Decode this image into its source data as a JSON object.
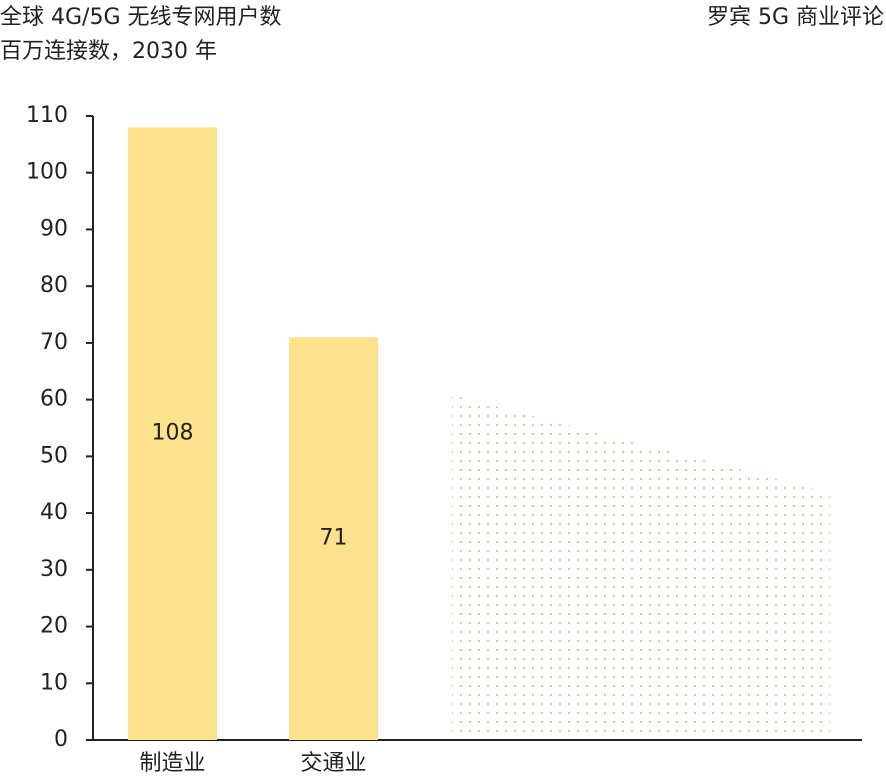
{
  "chart_data": {
    "type": "bar",
    "title": "全球 4G/5G 无线专网用户数",
    "subtitle": "百万连接数，2030 年",
    "source": "罗宾 5G 商业评论",
    "categories": [
      "制造业",
      "交通业"
    ],
    "values": [
      108,
      71
    ],
    "color": "#fce28c",
    "ylim": [
      0,
      110
    ],
    "yticks": [
      0,
      10,
      20,
      30,
      40,
      50,
      60,
      70,
      80,
      90,
      100,
      110
    ],
    "value_labels_inside": true
  }
}
